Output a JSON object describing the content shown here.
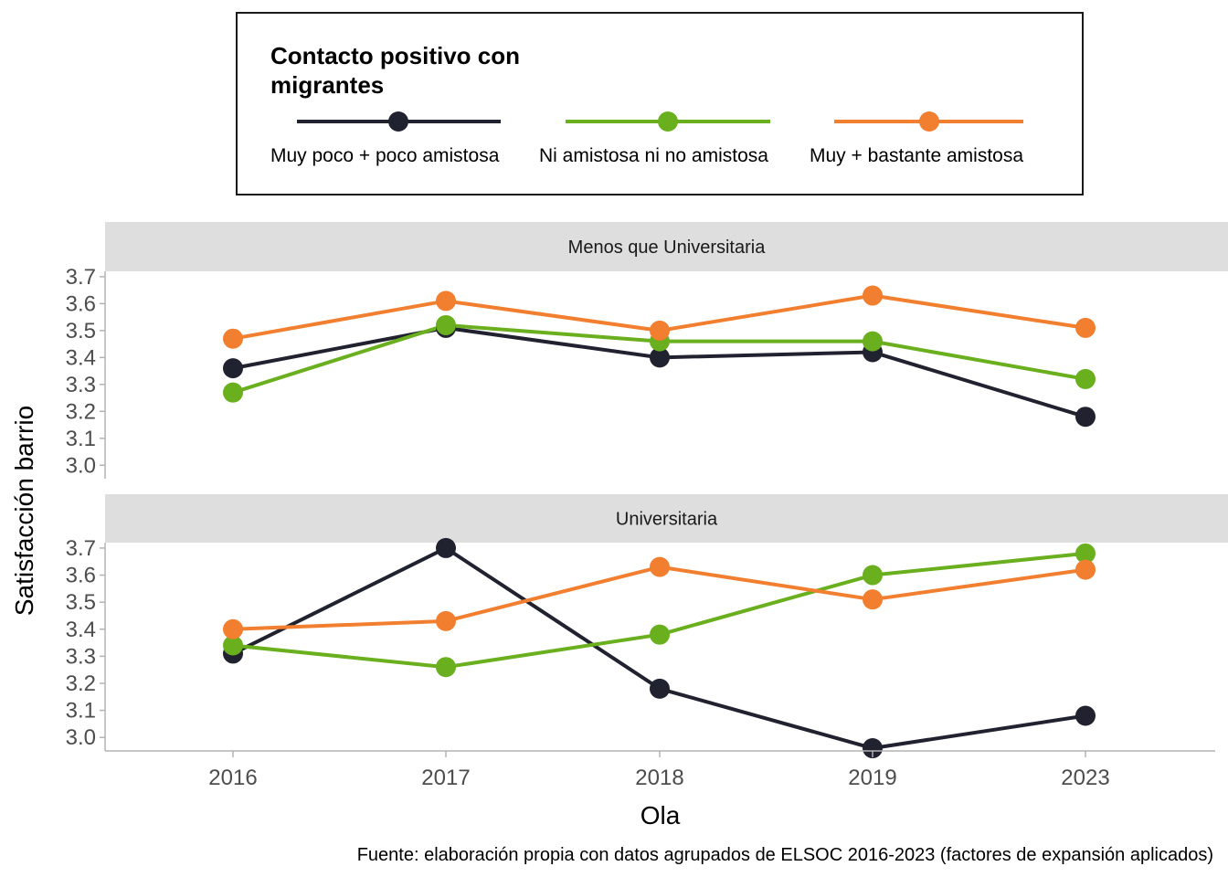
{
  "chart_data": {
    "type": "line",
    "categories": [
      "2016",
      "2017",
      "2018",
      "2019",
      "2023"
    ],
    "xlabel": "Ola",
    "ylabel": "Satisfacción barrio",
    "ylim": [
      2.95,
      3.72
    ],
    "yticks": [
      "3.0",
      "3.1",
      "3.2",
      "3.3",
      "3.4",
      "3.5",
      "3.6",
      "3.7"
    ],
    "caption": "Fuente: elaboración propia con datos agrupados de ELSOC 2016-2023 (factores de expansión aplicados)",
    "grid": false,
    "legend": {
      "position": "top",
      "title": "Contacto positivo con migrantes",
      "title_lines": [
        "Contacto positivo con",
        "migrantes"
      ],
      "entries": [
        "Muy poco + poco amistosa",
        "Ni amistosa ni no amistosa",
        "Muy + bastante amistosa"
      ]
    },
    "colors": [
      "#21222f",
      "#6aaf1e",
      "#f17f2f"
    ],
    "panels": [
      {
        "title": "Menos que Universitaria",
        "series": [
          {
            "name": "Muy poco + poco amistosa",
            "values": [
              3.36,
              3.51,
              3.4,
              3.42,
              3.18
            ]
          },
          {
            "name": "Ni amistosa ni no amistosa",
            "values": [
              3.27,
              3.52,
              3.46,
              3.46,
              3.32
            ]
          },
          {
            "name": "Muy + bastante amistosa",
            "values": [
              3.47,
              3.61,
              3.5,
              3.63,
              3.51
            ]
          }
        ]
      },
      {
        "title": "Universitaria",
        "series": [
          {
            "name": "Muy poco + poco amistosa",
            "values": [
              3.31,
              3.7,
              3.18,
              2.96,
              3.08
            ]
          },
          {
            "name": "Ni amistosa ni no amistosa",
            "values": [
              3.34,
              3.26,
              3.38,
              3.6,
              3.68
            ]
          },
          {
            "name": "Muy + bastante amistosa",
            "values": [
              3.4,
              3.43,
              3.63,
              3.51,
              3.62
            ]
          }
        ]
      }
    ]
  }
}
